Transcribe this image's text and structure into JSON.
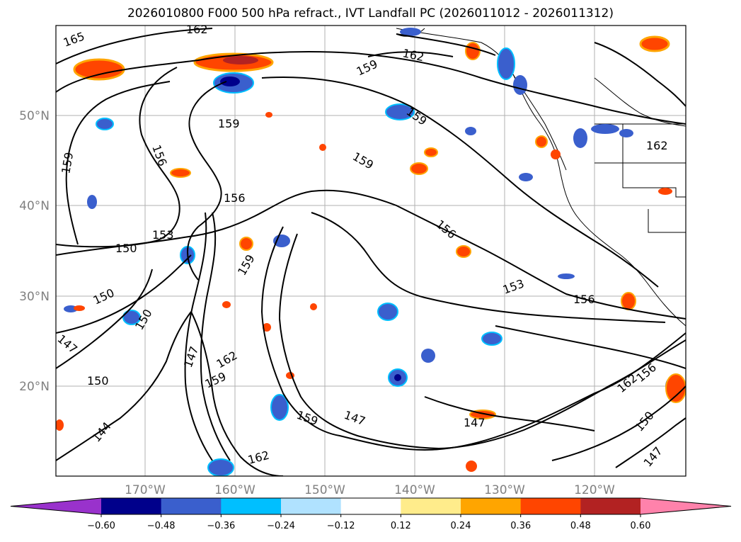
{
  "title": "2026010800 F000 500 hPa refract., IVT Landfall PC (2026011012 - 2026011312)",
  "lat_labels": [
    "50°N",
    "40°N",
    "30°N",
    "20°N"
  ],
  "lon_labels": [
    "170°W",
    "160°W",
    "150°W",
    "140°W",
    "130°W",
    "120°W"
  ],
  "contour_labels": [
    "165",
    "162",
    "162",
    "159",
    "159",
    "159",
    "159",
    "156",
    "156",
    "156",
    "153",
    "150",
    "150",
    "147",
    "147",
    "153",
    "156",
    "159",
    "162",
    "159",
    "150",
    "147",
    "144",
    "150",
    "162",
    "159",
    "147",
    "159",
    "156",
    "162",
    "150",
    "147",
    "162"
  ],
  "colorbar": {
    "tick_labels": [
      "−0.60",
      "−0.48",
      "−0.36",
      "−0.24",
      "−0.12",
      "0.12",
      "0.24",
      "0.36",
      "0.48",
      "0.60"
    ],
    "colors": [
      "#9932cc",
      "#00008b",
      "#3a5fcd",
      "#00bfff",
      "#b0e2ff",
      "#ffffff",
      "#ffec8b",
      "#ffa500",
      "#ff4500",
      "#b22222",
      "#ff82ab"
    ]
  }
}
